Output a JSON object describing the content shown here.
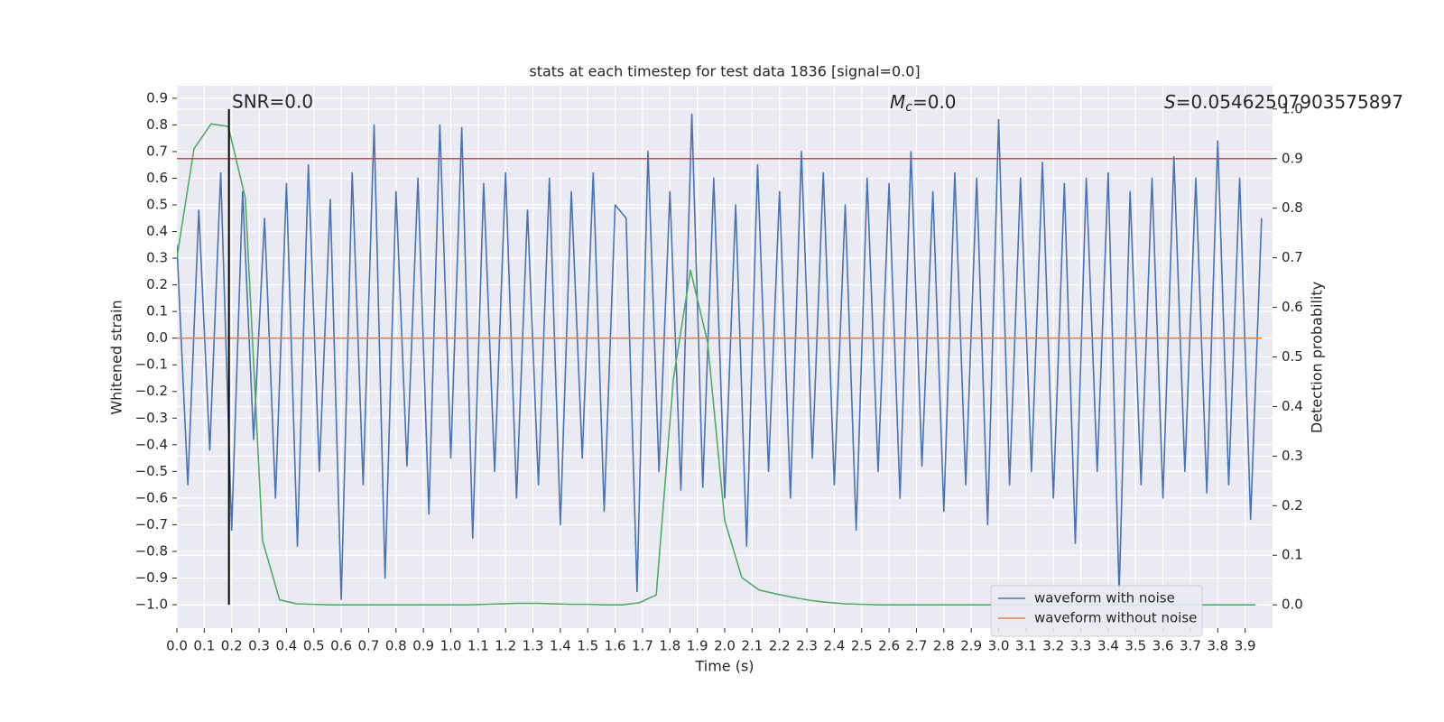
{
  "chart_data": {
    "type": "line",
    "title": "stats at each timestep for test data 1836 [signal=0.0]",
    "x_label": "Time (s)",
    "y_label": "Whitened strain",
    "y2_label": "Detection probability",
    "xlim": [
      0,
      4
    ],
    "ylim": [
      -1.088,
      0.947
    ],
    "y2lim": [
      -0.047,
      1.047
    ],
    "grid": true,
    "legend_position": "lower right",
    "xticks": [
      {
        "value": 0,
        "label": "0.0"
      },
      0.1,
      0.2,
      0.3,
      0.4,
      0.5,
      0.6,
      0.7,
      0.8,
      0.9,
      {
        "value": 1,
        "label": "1.0"
      },
      1.1,
      1.2,
      1.3,
      1.4,
      1.5,
      1.6,
      1.7,
      1.8,
      1.9,
      {
        "value": 2,
        "label": "2.0"
      },
      2.1,
      2.2,
      2.3,
      2.4,
      2.5,
      2.6,
      2.7,
      2.8,
      2.9,
      {
        "value": 3,
        "label": "3.0"
      },
      3.1,
      3.2,
      3.3,
      3.4,
      3.5,
      3.6,
      3.7,
      3.8,
      3.9
    ],
    "yticks": [
      {
        "value": -1,
        "label": "−1.0"
      },
      {
        "value": -0.9,
        "label": "−0.9"
      },
      {
        "value": -0.8,
        "label": "−0.8"
      },
      {
        "value": -0.7,
        "label": "−0.7"
      },
      {
        "value": -0.6,
        "label": "−0.6"
      },
      {
        "value": -0.5,
        "label": "−0.5"
      },
      {
        "value": -0.4,
        "label": "−0.4"
      },
      {
        "value": -0.3,
        "label": "−0.3"
      },
      {
        "value": -0.2,
        "label": "−0.2"
      },
      {
        "value": -0.1,
        "label": "−0.1"
      },
      {
        "value": 0,
        "label": "0.0"
      },
      0.1,
      0.2,
      0.3,
      0.4,
      0.5,
      0.6,
      0.7,
      0.8,
      0.9
    ],
    "y2ticks": [
      {
        "value": 0,
        "label": "0.0"
      },
      0.1,
      0.2,
      0.3,
      0.4,
      0.5,
      0.6,
      0.7,
      0.8,
      0.9,
      {
        "value": 1,
        "label": "1.0"
      }
    ],
    "series": [
      {
        "name": "waveform with noise",
        "color": "#4c72b0",
        "x": [
          0,
          0.04,
          0.08,
          0.12,
          0.16,
          0.2,
          0.24,
          0.28,
          0.32,
          0.36,
          0.4,
          0.44,
          0.48,
          0.52,
          0.56,
          0.6,
          0.64,
          0.68,
          0.72,
          0.76,
          0.8,
          0.84,
          0.88,
          0.92,
          0.96,
          1,
          1.04,
          1.08,
          1.12,
          1.16,
          1.2,
          1.24,
          1.28,
          1.32,
          1.36,
          1.4,
          1.44,
          1.48,
          1.52,
          1.56,
          1.6,
          1.64,
          1.68,
          1.72,
          1.76,
          1.8,
          1.84,
          1.88,
          1.92,
          1.96,
          2,
          2.04,
          2.08,
          2.12,
          2.16,
          2.2,
          2.24,
          2.28,
          2.32,
          2.36,
          2.4,
          2.44,
          2.48,
          2.52,
          2.56,
          2.6,
          2.64,
          2.68,
          2.72,
          2.76,
          2.8,
          2.84,
          2.88,
          2.92,
          2.96,
          3,
          3.04,
          3.08,
          3.12,
          3.16,
          3.2,
          3.24,
          3.28,
          3.32,
          3.36,
          3.4,
          3.44,
          3.48,
          3.52,
          3.56,
          3.6,
          3.64,
          3.68,
          3.72,
          3.76,
          3.8,
          3.84,
          3.88,
          3.92,
          3.96
        ],
        "values": [
          0.35,
          -0.55,
          0.48,
          -0.42,
          0.62,
          -0.72,
          0.55,
          -0.38,
          0.45,
          -0.6,
          0.58,
          -0.78,
          0.65,
          -0.5,
          0.52,
          -0.98,
          0.62,
          -0.55,
          0.8,
          -0.9,
          0.55,
          -0.48,
          0.6,
          -0.66,
          0.8,
          -0.45,
          0.79,
          -0.75,
          0.58,
          -0.5,
          0.62,
          -0.6,
          0.48,
          -0.55,
          0.6,
          -0.7,
          0.55,
          -0.45,
          0.62,
          -0.65,
          0.5,
          0.45,
          -0.95,
          0.7,
          -0.5,
          0.55,
          -0.57,
          0.84,
          -0.56,
          0.6,
          -0.6,
          0.5,
          -0.78,
          0.65,
          -0.5,
          0.55,
          -0.6,
          0.7,
          -0.45,
          0.62,
          -0.55,
          0.5,
          -0.72,
          0.6,
          -0.5,
          0.58,
          -0.6,
          0.7,
          -0.48,
          0.55,
          -0.65,
          0.62,
          -0.55,
          0.6,
          -0.7,
          0.82,
          -0.55,
          0.6,
          -0.5,
          0.66,
          -0.6,
          0.58,
          -0.77,
          0.6,
          -0.5,
          0.62,
          -0.96,
          0.55,
          -0.55,
          0.6,
          -0.6,
          0.68,
          -0.5,
          0.6,
          -0.58,
          0.74,
          -0.55,
          0.6,
          -0.68,
          0.45
        ]
      },
      {
        "name": "waveform without noise",
        "color": "#dd8452",
        "x": [
          0,
          3.96
        ],
        "values": [
          0,
          0
        ]
      },
      {
        "color": "#55a868",
        "axis": "y2",
        "x": [
          0,
          0.0625,
          0.125,
          0.1875,
          0.25,
          0.3125,
          0.375,
          0.4375,
          0.5,
          0.5625,
          0.625,
          0.6875,
          0.75,
          0.8125,
          0.875,
          0.9375,
          1,
          1.0625,
          1.125,
          1.1875,
          1.25,
          1.3125,
          1.375,
          1.4375,
          1.5,
          1.5625,
          1.625,
          1.6875,
          1.75,
          1.8125,
          1.875,
          1.9375,
          2,
          2.0625,
          2.125,
          2.1875,
          2.25,
          2.3125,
          2.375,
          2.4375,
          2.5,
          2.5625,
          2.625,
          2.6875,
          2.75,
          2.8125,
          2.875,
          2.9375,
          3,
          3.0625,
          3.125,
          3.1875,
          3.25,
          3.3125,
          3.375,
          3.4375,
          3.5,
          3.5625,
          3.625,
          3.6875,
          3.75,
          3.8125,
          3.875,
          3.9375
        ],
        "values": [
          0.7,
          0.92,
          0.97,
          0.965,
          0.82,
          0.13,
          0.01,
          0.002,
          0.001,
          0,
          0,
          0,
          0,
          0,
          0,
          0,
          0,
          0,
          0.001,
          0.002,
          0.003,
          0.003,
          0.002,
          0.001,
          0.001,
          0,
          0,
          0.004,
          0.02,
          0.455,
          0.675,
          0.53,
          0.17,
          0.055,
          0.03,
          0.022,
          0.015,
          0.009,
          0.005,
          0.002,
          0.001,
          0,
          0,
          0,
          0,
          0,
          0,
          0,
          0,
          0,
          0,
          0,
          0,
          0,
          0,
          0,
          0,
          0,
          0,
          0,
          0,
          0,
          0,
          0
        ]
      }
    ],
    "hline": {
      "value": 0.9,
      "axis": "y2",
      "color": "#c44e52"
    },
    "vline": {
      "x": 0.19,
      "ymin": 0,
      "ymax": 1,
      "axis": "y2",
      "color": "#000000"
    },
    "annotations": {
      "snr": "SNR=0.0",
      "mc": {
        "symbol": "M",
        "subscript": "c",
        "text": "=0.0"
      },
      "s": {
        "symbol": "S",
        "text": "=0.05462507903575897"
      }
    }
  }
}
